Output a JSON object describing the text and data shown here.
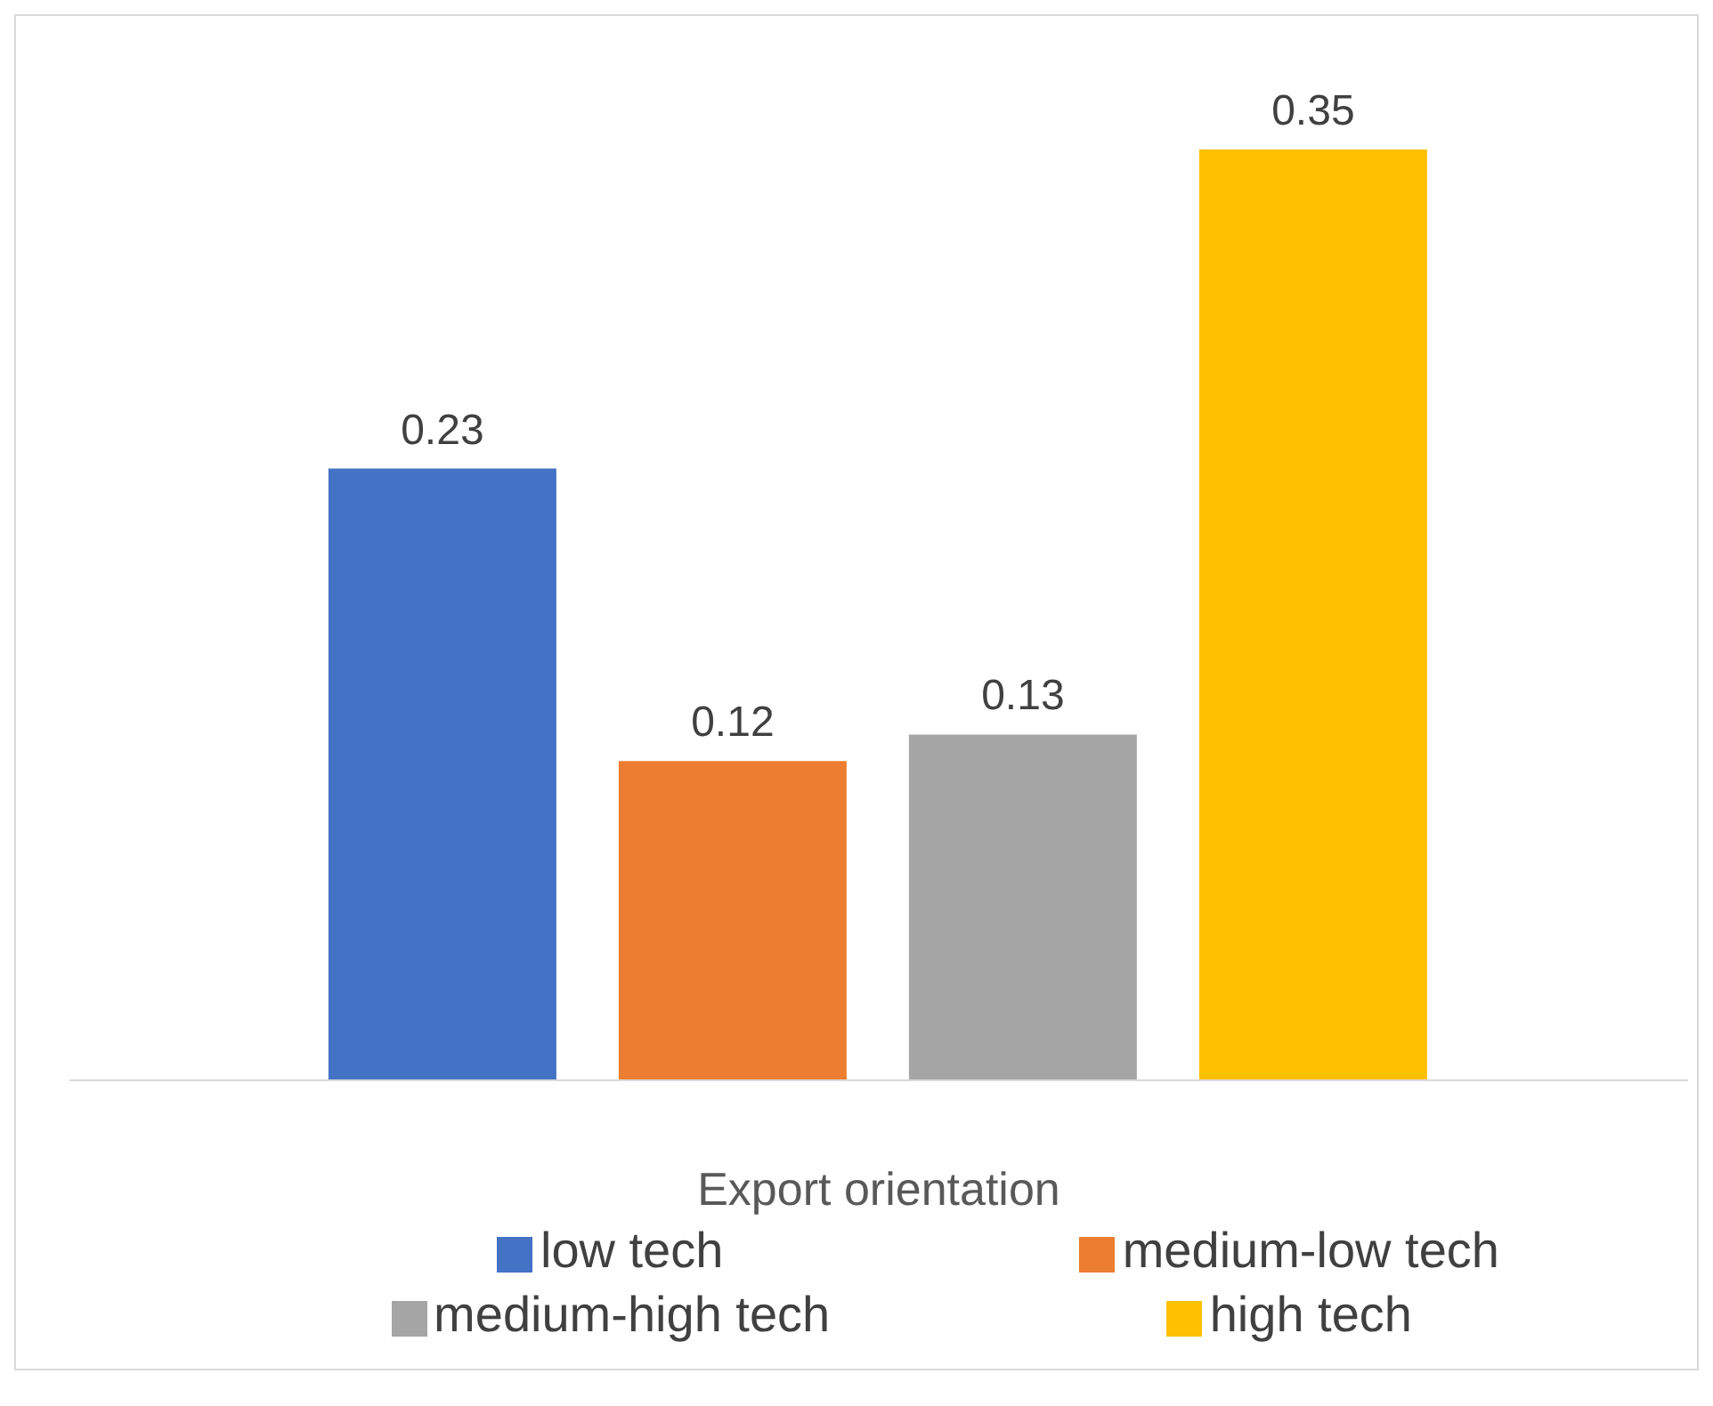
{
  "chart_data": {
    "type": "bar",
    "categories": [
      null
    ],
    "xlabel": "Export orientation",
    "series": [
      {
        "name": "low tech",
        "color": "#4472c4",
        "values": [
          0.23
        ]
      },
      {
        "name": "medium-low tech",
        "color": "#ed7d31",
        "values": [
          0.12
        ]
      },
      {
        "name": "medium-high tech",
        "color": "#a5a5a5",
        "values": [
          0.13
        ]
      },
      {
        "name": "high tech",
        "color": "#ffc000",
        "values": [
          0.35
        ]
      }
    ],
    "data_labels": true,
    "legend": "bottom"
  }
}
